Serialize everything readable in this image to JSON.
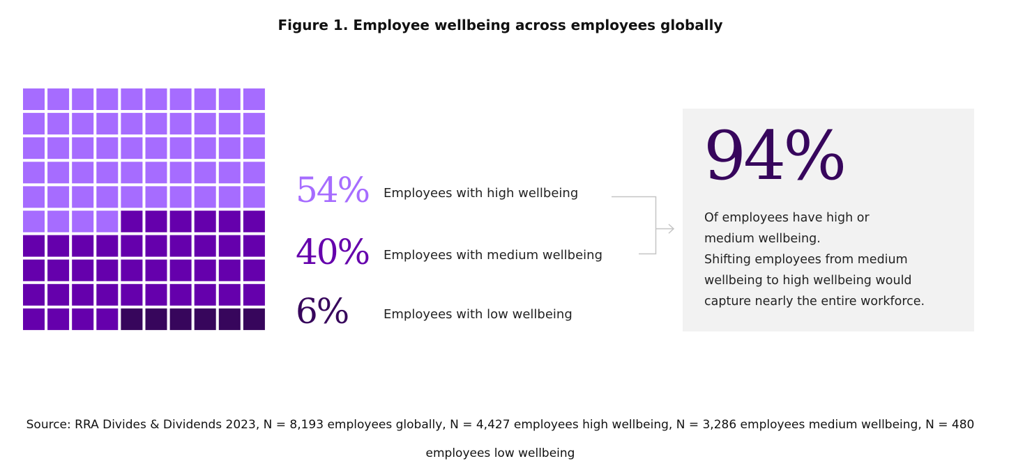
{
  "chart_data": {
    "type": "waffle",
    "title": "Figure 1. Employee wellbeing across employees globally",
    "grid": [
      10,
      10
    ],
    "categories": [
      {
        "value": 54,
        "label": "54%",
        "name": "Employees with high wellbeing",
        "color": "#a66cff"
      },
      {
        "value": 40,
        "label": "40%",
        "name": "Employees with medium wellbeing",
        "color": "#6500ac"
      },
      {
        "value": 6,
        "label": "6%",
        "name": "Employees with low wellbeing",
        "color": "#37065c"
      }
    ]
  },
  "callout": {
    "value": "94%",
    "lines": [
      "Of employees have high or medium wellbeing.",
      "Shifting employees from medium wellbeing to high wellbeing would capture nearly the entire workforce."
    ],
    "background": "#f2f2f2"
  },
  "source": "Source: RRA Divides & Dividends 2023, N = 8,193 employees globally, N = 4,427 employees high wellbeing, N = 3,286 employees medium wellbeing, N = 480 employees low wellbeing"
}
